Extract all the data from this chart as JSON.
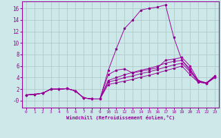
{
  "xlabel": "Windchill (Refroidissement éolien,°C)",
  "background_color": "#cce8e8",
  "grid_color": "#b0c8c8",
  "line_color": "#990099",
  "xlim": [
    -0.5,
    23.5
  ],
  "ylim": [
    -1.2,
    17.2
  ],
  "xticks": [
    0,
    1,
    2,
    3,
    4,
    5,
    6,
    7,
    8,
    9,
    10,
    11,
    12,
    13,
    14,
    15,
    16,
    17,
    18,
    19,
    20,
    21,
    22,
    23
  ],
  "yticks": [
    0,
    2,
    4,
    6,
    8,
    10,
    12,
    14,
    16
  ],
  "ytick_labels": [
    "-0",
    "2",
    "4",
    "6",
    "8",
    "10",
    "12",
    "14",
    "16"
  ],
  "lines": [
    [
      0,
      1,
      1,
      1.1,
      2,
      1.3,
      3,
      2.0,
      4,
      2.0,
      5,
      2.1,
      6,
      1.7,
      7,
      0.5,
      8,
      0.3,
      9,
      0.3,
      10,
      2.8,
      11,
      3.1,
      12,
      3.4,
      13,
      3.7,
      14,
      4.1,
      15,
      4.4,
      16,
      4.8,
      17,
      5.2,
      18,
      5.6,
      19,
      6.0,
      20,
      4.5,
      21,
      3.2,
      22,
      3.0,
      23,
      4.0
    ],
    [
      0,
      1,
      1,
      1.1,
      2,
      1.3,
      3,
      2.0,
      4,
      2.0,
      5,
      2.1,
      6,
      1.7,
      7,
      0.5,
      8,
      0.3,
      9,
      0.3,
      10,
      3.2,
      11,
      3.6,
      12,
      4.0,
      13,
      4.3,
      14,
      4.7,
      15,
      5.0,
      16,
      5.4,
      17,
      5.8,
      18,
      6.2,
      19,
      6.5,
      20,
      5.0,
      21,
      3.3,
      22,
      3.0,
      23,
      4.1
    ],
    [
      0,
      1,
      1,
      1.1,
      2,
      1.3,
      3,
      2.0,
      4,
      2.0,
      5,
      2.1,
      6,
      1.7,
      7,
      0.5,
      8,
      0.3,
      9,
      0.3,
      10,
      3.5,
      11,
      4.0,
      12,
      4.5,
      13,
      4.9,
      14,
      5.3,
      15,
      5.6,
      16,
      6.0,
      17,
      6.5,
      18,
      6.8,
      19,
      7.0,
      20,
      5.5,
      21,
      3.3,
      22,
      3.1,
      23,
      4.2
    ],
    [
      0,
      1,
      1,
      1.1,
      2,
      1.3,
      3,
      2.0,
      4,
      2.0,
      5,
      2.1,
      6,
      1.7,
      7,
      0.5,
      8,
      0.3,
      9,
      0.3,
      10,
      4.5,
      11,
      5.3,
      12,
      5.5,
      13,
      4.8,
      14,
      5.1,
      15,
      5.4,
      16,
      5.7,
      17,
      7.0,
      18,
      7.2,
      19,
      7.5,
      20,
      6.0,
      21,
      3.5,
      22,
      3.1,
      23,
      4.3
    ],
    [
      0,
      1,
      1,
      1.1,
      2,
      1.3,
      3,
      2.0,
      4,
      2.0,
      5,
      2.1,
      6,
      1.7,
      7,
      0.5,
      8,
      0.3,
      9,
      0.3,
      10,
      5.2,
      11,
      9.0,
      12,
      12.5,
      13,
      14.0,
      14,
      15.7,
      15,
      16.0,
      16,
      16.2,
      17,
      16.6,
      18,
      11.0,
      19,
      7.0,
      20,
      5.2,
      21,
      3.5,
      22,
      3.0,
      23,
      4.0
    ]
  ]
}
